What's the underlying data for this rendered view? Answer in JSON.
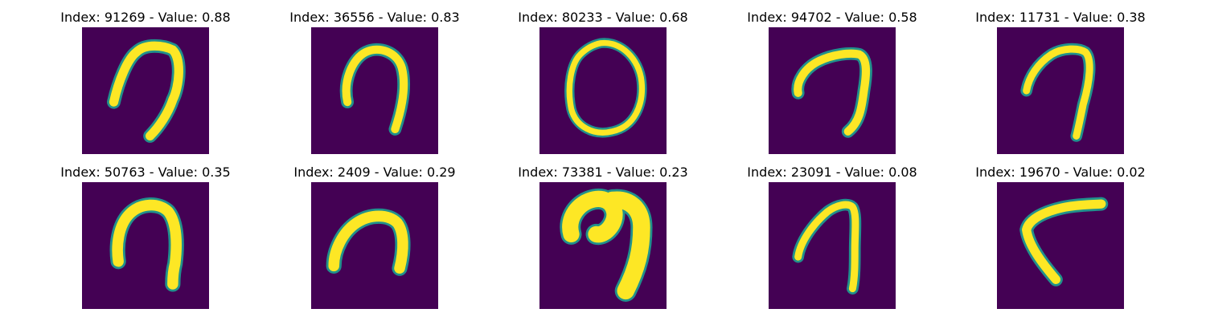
{
  "colors": {
    "background": "#440154",
    "stroke_core": "#fde725",
    "stroke_edge": "#21918c",
    "text": "#000000"
  },
  "panels": [
    {
      "title": "Index: 91269 - Value: 0.88",
      "index": 91269,
      "value": 0.88
    },
    {
      "title": "Index: 36556 - Value: 0.83",
      "index": 36556,
      "value": 0.83
    },
    {
      "title": "Index: 80233 - Value: 0.68",
      "index": 80233,
      "value": 0.68
    },
    {
      "title": "Index: 94702 - Value: 0.58",
      "index": 94702,
      "value": 0.58
    },
    {
      "title": "Index: 11731 - Value: 0.38",
      "index": 11731,
      "value": 0.38
    },
    {
      "title": "Index: 50763 - Value: 0.35",
      "index": 50763,
      "value": 0.35
    },
    {
      "title": "Index: 2409 - Value: 0.29",
      "index": 2409,
      "value": 0.29
    },
    {
      "title": "Index: 73381 - Value: 0.23",
      "index": 73381,
      "value": 0.23
    },
    {
      "title": "Index: 23091 - Value: 0.08",
      "index": 23091,
      "value": 0.08
    },
    {
      "title": "Index: 19670 - Value: 0.02",
      "index": 19670,
      "value": 0.02
    }
  ]
}
